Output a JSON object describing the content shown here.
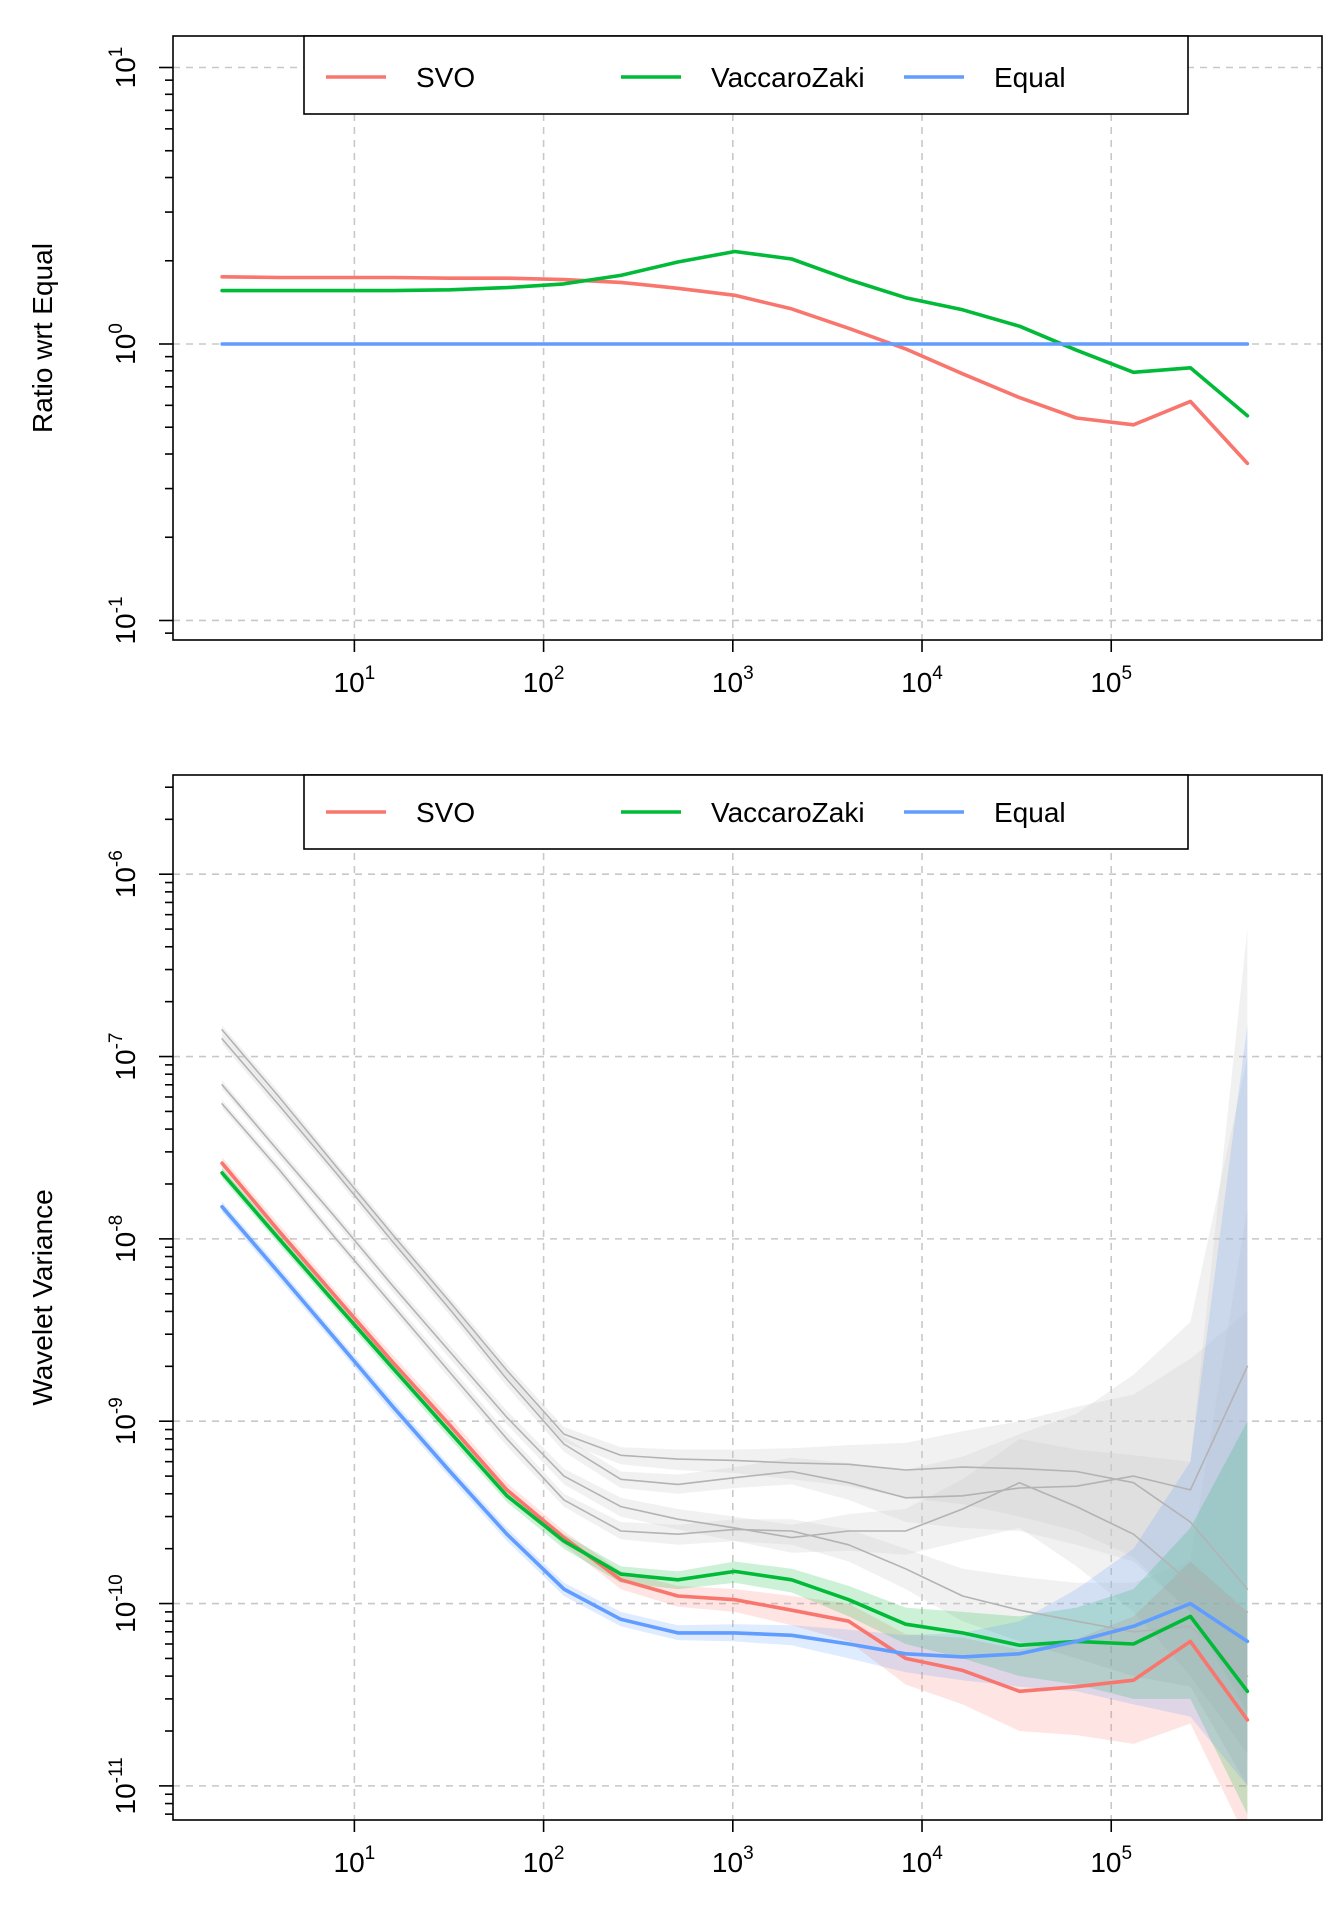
{
  "chart_data": [
    {
      "type": "line",
      "title": "",
      "xlabel": "",
      "ylabel": "Ratio wrt Equal",
      "log_x": true,
      "log_y": true,
      "xlim": [
        1.1,
        1300000
      ],
      "ylim": [
        0.085,
        13
      ],
      "x_ticks": [
        {
          "value": 10,
          "base": "10",
          "exp": "1"
        },
        {
          "value": 100,
          "base": "10",
          "exp": "2"
        },
        {
          "value": 1000,
          "base": "10",
          "exp": "3"
        },
        {
          "value": 10000,
          "base": "10",
          "exp": "4"
        },
        {
          "value": 100000,
          "base": "10",
          "exp": "5"
        }
      ],
      "y_ticks": [
        {
          "value": 0.1,
          "base": "10",
          "exp": "-1"
        },
        {
          "value": 1,
          "base": "10",
          "exp": "0"
        },
        {
          "value": 10,
          "base": "10",
          "exp": "1"
        }
      ],
      "grid": true,
      "legend": {
        "position": "top-center",
        "entries": [
          "SVO",
          "VaccaroZaki",
          "Equal"
        ]
      },
      "x": [
        2,
        4,
        8,
        16,
        32,
        64,
        128,
        256,
        512,
        1024,
        2048,
        4096,
        8192,
        16384,
        32768,
        65536,
        131072,
        262144,
        524288
      ],
      "series": [
        {
          "name": "SVO",
          "color": "#F8766D",
          "values": [
            1.75,
            1.74,
            1.74,
            1.74,
            1.73,
            1.73,
            1.71,
            1.67,
            1.59,
            1.5,
            1.34,
            1.14,
            0.96,
            0.78,
            0.64,
            0.54,
            0.51,
            0.62,
            0.37
          ]
        },
        {
          "name": "VaccaroZaki",
          "color": "#00BA38",
          "values": [
            1.56,
            1.56,
            1.56,
            1.56,
            1.57,
            1.6,
            1.65,
            1.77,
            1.98,
            2.16,
            2.03,
            1.71,
            1.47,
            1.33,
            1.16,
            0.95,
            0.79,
            0.82,
            0.55
          ]
        },
        {
          "name": "Equal",
          "color": "#619CFF",
          "values": [
            1,
            1,
            1,
            1,
            1,
            1,
            1,
            1,
            1,
            1,
            1,
            1,
            1,
            1,
            1,
            1,
            1,
            1,
            1
          ]
        }
      ]
    },
    {
      "type": "line",
      "title": "",
      "xlabel": "",
      "ylabel": "Wavelet Variance",
      "log_x": true,
      "log_y": true,
      "xlim": [
        1.1,
        1300000
      ],
      "ylim": [
        6.5e-12,
        3.5e-06
      ],
      "x_ticks": [
        {
          "value": 10,
          "base": "10",
          "exp": "1"
        },
        {
          "value": 100,
          "base": "10",
          "exp": "2"
        },
        {
          "value": 1000,
          "base": "10",
          "exp": "3"
        },
        {
          "value": 10000,
          "base": "10",
          "exp": "4"
        },
        {
          "value": 100000,
          "base": "10",
          "exp": "5"
        }
      ],
      "y_ticks": [
        {
          "value": 1e-11,
          "base": "10",
          "exp": "-11"
        },
        {
          "value": 1e-10,
          "base": "10",
          "exp": "-10"
        },
        {
          "value": 1e-09,
          "base": "10",
          "exp": "-9"
        },
        {
          "value": 1e-08,
          "base": "10",
          "exp": "-8"
        },
        {
          "value": 1e-07,
          "base": "10",
          "exp": "-7"
        },
        {
          "value": 1e-06,
          "base": "10",
          "exp": "-6"
        }
      ],
      "grid": true,
      "legend": {
        "position": "top-center",
        "entries": [
          "SVO",
          "VaccaroZaki",
          "Equal"
        ]
      },
      "x": [
        2,
        4,
        8,
        16,
        32,
        64,
        128,
        256,
        512,
        1024,
        2048,
        4096,
        8192,
        16384,
        32768,
        65536,
        131072,
        262144,
        524288
      ],
      "series": [
        {
          "name": "SVO",
          "color": "#F8766D",
          "band_color": "#F8766D",
          "values": [
            2.6e-08,
            1.1e-08,
            4.8e-09,
            2.1e-09,
            9.5e-10,
            4.2e-10,
            2.3e-10,
            1.35e-10,
            1.1e-10,
            1.05e-10,
            9.2e-11,
            8e-11,
            5e-11,
            4.3e-11,
            3.3e-11,
            3.5e-11,
            3.8e-11,
            6.2e-11,
            2.3e-11
          ],
          "lower": [
            2.4e-08,
            1e-08,
            4.4e-09,
            1.9e-09,
            8.6e-10,
            3.8e-10,
            2.1e-10,
            1.2e-10,
            9.6e-11,
            9e-11,
            7.6e-11,
            6.2e-11,
            3.6e-11,
            2.8e-11,
            2e-11,
            1.9e-11,
            1.7e-11,
            2.2e-11,
            5e-12
          ],
          "upper": [
            2.8e-08,
            1.2e-08,
            5.2e-09,
            2.3e-09,
            1.05e-09,
            4.6e-10,
            2.5e-10,
            1.5e-10,
            1.25e-10,
            1.2e-10,
            1.1e-10,
            1e-10,
            6.8e-11,
            6.5e-11,
            5.6e-11,
            6.4e-11,
            8.5e-11,
            1.7e-10,
            9e-11
          ]
        },
        {
          "name": "VaccaroZaki",
          "color": "#00BA38",
          "band_color": "#00BA38",
          "values": [
            2.3e-08,
            1e-08,
            4.4e-09,
            1.95e-09,
            8.7e-10,
            3.9e-10,
            2.2e-10,
            1.45e-10,
            1.35e-10,
            1.5e-10,
            1.35e-10,
            1.05e-10,
            7.7e-11,
            6.9e-11,
            5.9e-11,
            6.2e-11,
            6e-11,
            8.5e-11,
            3.3e-11
          ],
          "lower": [
            2.15e-08,
            9.3e-09,
            4.1e-09,
            1.8e-09,
            8e-10,
            3.6e-10,
            2e-10,
            1.3e-10,
            1.2e-10,
            1.3e-10,
            1.15e-10,
            8.5e-11,
            6e-11,
            5e-11,
            4e-11,
            3.6e-11,
            3e-11,
            3e-11,
            7e-12
          ],
          "upper": [
            2.45e-08,
            1.07e-08,
            4.7e-09,
            2.1e-09,
            9.4e-10,
            4.2e-10,
            2.4e-10,
            1.6e-10,
            1.5e-10,
            1.7e-10,
            1.55e-10,
            1.25e-10,
            9.5e-11,
            9e-11,
            8.5e-11,
            9.5e-11,
            1.2e-10,
            2.6e-10,
            1e-09
          ]
        },
        {
          "name": "Equal",
          "color": "#619CFF",
          "band_color": "#619CFF",
          "values": [
            1.5e-08,
            6.5e-09,
            2.8e-09,
            1.2e-09,
            5.3e-10,
            2.4e-10,
            1.2e-10,
            8.2e-11,
            6.9e-11,
            6.9e-11,
            6.7e-11,
            6e-11,
            5.3e-11,
            5.1e-11,
            5.3e-11,
            6.2e-11,
            7.5e-11,
            1e-10,
            6.2e-11
          ],
          "lower": [
            1.4e-08,
            6e-09,
            2.6e-09,
            1.1e-09,
            4.9e-10,
            2.2e-10,
            1.1e-10,
            7.5e-11,
            6.3e-11,
            6.2e-11,
            5.9e-11,
            5e-11,
            4.2e-11,
            3.8e-11,
            3.5e-11,
            3.3e-11,
            2.8e-11,
            2.4e-11,
            1e-11
          ],
          "upper": [
            1.6e-08,
            7e-09,
            3e-09,
            1.3e-09,
            5.7e-10,
            2.6e-10,
            1.3e-10,
            9e-11,
            7.6e-11,
            7.7e-11,
            7.6e-11,
            7.2e-11,
            6.7e-11,
            6.9e-11,
            8e-11,
            1.2e-10,
            2e-10,
            6e-10,
            1.5e-07
          ]
        },
        {
          "name": "",
          "color": "#b3b3b3",
          "band_color": "#cccccc",
          "values": [
            1.4e-07,
            6e-08,
            2.5e-08,
            1.05e-08,
            4.5e-09,
            1.9e-09,
            8.5e-10,
            6.5e-10,
            6.2e-10,
            6.1e-10,
            5.9e-10,
            5.8e-10,
            5.4e-10,
            5.6e-10,
            5.5e-10,
            5.3e-10,
            4.6e-10,
            2.8e-10,
            1.2e-10
          ],
          "lower": [
            1.32e-07,
            5.6e-08,
            2.35e-08,
            9.8e-09,
            4.2e-09,
            1.75e-09,
            7.7e-10,
            5.8e-10,
            5.4e-10,
            5.2e-10,
            4.8e-10,
            4.4e-10,
            3.8e-10,
            3.5e-10,
            3e-10,
            2.5e-10,
            1.8e-10,
            9e-11,
            3e-11
          ],
          "upper": [
            1.48e-07,
            6.4e-08,
            2.65e-08,
            1.12e-08,
            4.8e-09,
            2.05e-09,
            9.3e-10,
            7.2e-10,
            7e-10,
            7e-10,
            7.1e-10,
            7.4e-10,
            7.6e-10,
            8.8e-10,
            1e-09,
            1.2e-09,
            1.4e-09,
            2.2e-09,
            4e-09
          ]
        },
        {
          "name": "",
          "color": "#b3b3b3",
          "band_color": "#cccccc",
          "values": [
            1.25e-07,
            5.4e-08,
            2.3e-08,
            9.6e-09,
            4.1e-09,
            1.7e-09,
            7.5e-10,
            4.8e-10,
            4.5e-10,
            4.9e-10,
            5.3e-10,
            4.6e-10,
            3.8e-10,
            3.9e-10,
            4.3e-10,
            4.4e-10,
            5e-10,
            4.2e-10,
            2e-09
          ],
          "lower": [
            1.17e-07,
            5e-08,
            2.15e-08,
            8.9e-09,
            3.8e-09,
            1.55e-09,
            6.8e-10,
            4.3e-10,
            4e-10,
            4.3e-10,
            4.5e-10,
            3.7e-10,
            2.8e-10,
            2.6e-10,
            2.5e-10,
            2.1e-10,
            1.7e-10,
            9e-11,
            2.5e-11
          ],
          "upper": [
            1.33e-07,
            5.8e-08,
            2.45e-08,
            1.03e-08,
            4.4e-09,
            1.85e-09,
            8.2e-10,
            5.3e-10,
            5.1e-10,
            5.6e-10,
            6.3e-10,
            5.9e-10,
            5.4e-10,
            6.4e-10,
            8.5e-10,
            1.1e-09,
            1.8e-09,
            3.5e-09,
            1e-07
          ]
        },
        {
          "name": "",
          "color": "#b3b3b3",
          "band_color": "#cccccc",
          "values": [
            7e-08,
            3e-08,
            1.3e-08,
            5.5e-09,
            2.4e-09,
            1.05e-09,
            5e-10,
            3.4e-10,
            2.9e-10,
            2.6e-10,
            2.3e-10,
            2.5e-10,
            2.5e-10,
            3.3e-10,
            4.6e-10,
            3.4e-10,
            2.4e-10,
            1.3e-10,
            9e-11
          ],
          "lower": [
            6.6e-08,
            2.8e-08,
            1.22e-08,
            5.1e-09,
            2.2e-09,
            9.6e-10,
            4.5e-10,
            3e-10,
            2.55e-10,
            2.2e-10,
            1.9e-10,
            1.95e-10,
            1.85e-10,
            2.2e-10,
            2.6e-10,
            1.6e-10,
            9e-11,
            4e-11,
            1.5e-11
          ],
          "upper": [
            7.4e-08,
            3.2e-08,
            1.38e-08,
            5.9e-09,
            2.6e-09,
            1.14e-09,
            5.5e-10,
            3.8e-10,
            3.3e-10,
            3e-10,
            2.7e-10,
            3.1e-10,
            3.3e-10,
            4.8e-10,
            8e-10,
            7e-10,
            6.5e-10,
            6e-10,
            5e-07
          ]
        },
        {
          "name": "",
          "color": "#b3b3b3",
          "band_color": "#cccccc",
          "values": [
            5.5e-08,
            2.4e-08,
            1e-08,
            4.3e-09,
            1.85e-09,
            8e-10,
            3.7e-10,
            2.5e-10,
            2.4e-10,
            2.55e-10,
            2.5e-10,
            2.1e-10,
            1.55e-10,
            1.1e-10,
            9.2e-11,
            8e-11,
            7e-11,
            7.5e-11,
            4e-11
          ],
          "lower": [
            5.2e-08,
            2.25e-08,
            9.4e-09,
            4e-09,
            1.7e-09,
            7.3e-10,
            3.4e-10,
            2.25e-10,
            2.1e-10,
            2.2e-10,
            2.1e-10,
            1.7e-10,
            1.2e-10,
            8e-11,
            6.2e-11,
            5e-11,
            4e-11,
            3.5e-11,
            1e-11
          ],
          "upper": [
            5.8e-08,
            2.55e-08,
            1.06e-08,
            4.6e-09,
            2e-09,
            8.7e-10,
            4e-10,
            2.8e-10,
            2.7e-10,
            2.9e-10,
            2.9e-10,
            2.55e-10,
            2e-10,
            1.55e-10,
            1.4e-10,
            1.3e-10,
            1.3e-10,
            1.7e-10,
            1.5e-08
          ]
        }
      ]
    }
  ]
}
